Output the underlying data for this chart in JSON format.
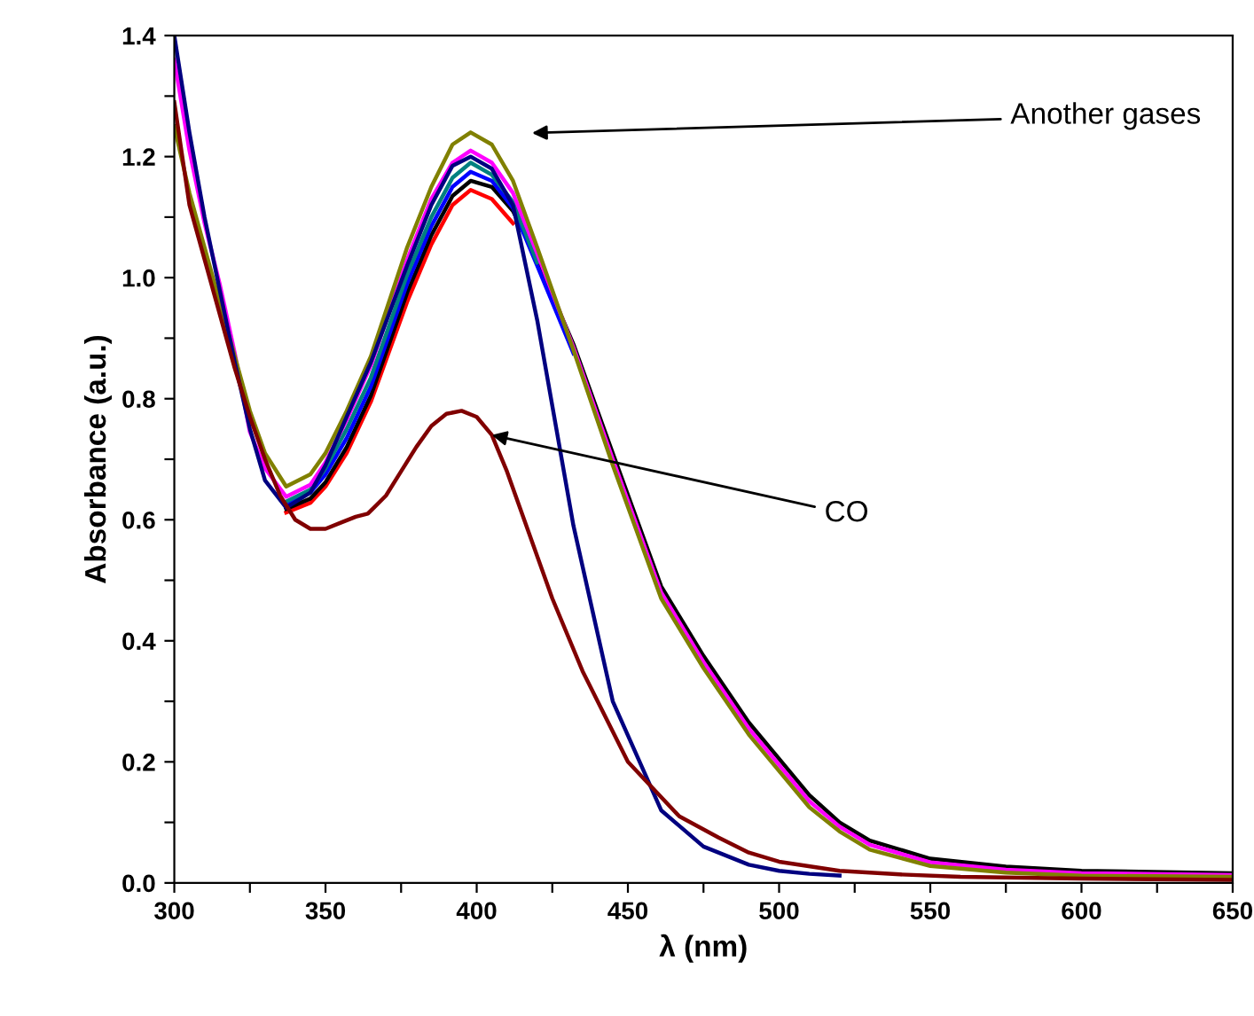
{
  "chart_data": {
    "type": "line",
    "xlabel": "λ (nm)",
    "ylabel": "Absorbance (a.u.)",
    "xlim": [
      300,
      650
    ],
    "ylim": [
      0,
      1.4
    ],
    "xticks": [
      300,
      {
        "value": 325,
        "label": null
      },
      350,
      {
        "value": 375,
        "label": null
      },
      400,
      {
        "value": 425,
        "label": null
      },
      450,
      {
        "value": 475,
        "label": null
      },
      500,
      {
        "value": 525,
        "label": null
      },
      550,
      {
        "value": 575,
        "label": null
      },
      600,
      {
        "value": 625,
        "label": null
      },
      650
    ],
    "yticks": [
      {
        "value": 0,
        "label": "0.0"
      },
      {
        "value": 0.1,
        "label": null
      },
      0.2,
      {
        "value": 0.3,
        "label": null
      },
      0.4,
      {
        "value": 0.5,
        "label": null
      },
      0.6,
      {
        "value": 0.7,
        "label": null
      },
      0.8,
      {
        "value": 0.9,
        "label": null
      },
      {
        "value": 1.0,
        "label": "1.0"
      },
      {
        "value": 1.1,
        "label": null
      },
      1.2,
      {
        "value": 1.3,
        "label": null
      },
      1.4
    ],
    "grid": false,
    "legend": false,
    "marker": "none",
    "line_style": "solid",
    "x": [
      300,
      305,
      310,
      315,
      320,
      325,
      330,
      337,
      345,
      350,
      357,
      365,
      377,
      385,
      392,
      398,
      405,
      412,
      420,
      432,
      445,
      461,
      475,
      490,
      500,
      510,
      520,
      530,
      550,
      575,
      600,
      650
    ],
    "series": [
      {
        "color": "#ff0000",
        "values": [
          null,
          null,
          null,
          null,
          null,
          null,
          null,
          0.612,
          0.628,
          0.655,
          0.71,
          0.795,
          0.96,
          1.055,
          1.12,
          1.145,
          1.13,
          1.09,
          null,
          null,
          null,
          null,
          null,
          null,
          null,
          null,
          null,
          null,
          null,
          null,
          null,
          null
        ]
      },
      {
        "color": "#000000",
        "values": [
          null,
          null,
          null,
          null,
          null,
          null,
          null,
          0.618,
          0.635,
          0.662,
          0.72,
          0.805,
          0.975,
          1.07,
          1.135,
          1.16,
          1.15,
          1.11,
          1.03,
          0.89,
          0.71,
          0.49,
          0.375,
          0.265,
          0.205,
          0.145,
          0.1,
          0.07,
          0.04,
          0.027,
          0.02,
          0.016
        ]
      },
      {
        "color": "#0000ff",
        "values": [
          null,
          null,
          null,
          null,
          null,
          null,
          null,
          0.625,
          0.645,
          0.675,
          0.735,
          0.82,
          0.99,
          1.085,
          1.15,
          1.175,
          1.16,
          1.115,
          1.02,
          0.875,
          null,
          null,
          null,
          null,
          null,
          null,
          null,
          null,
          null,
          null,
          null,
          null
        ]
      },
      {
        "color": "#008080",
        "values": [
          null,
          null,
          null,
          null,
          null,
          null,
          null,
          0.63,
          0.65,
          0.685,
          0.75,
          0.835,
          1.005,
          1.1,
          1.165,
          1.19,
          1.17,
          1.125,
          1.025,
          null,
          null,
          null,
          null,
          null,
          null,
          null,
          null,
          null,
          null,
          null,
          null,
          null
        ]
      },
      {
        "color": "#ff00ff",
        "values": [
          1.36,
          1.21,
          1.09,
          0.99,
          0.875,
          0.745,
          0.685,
          0.638,
          0.658,
          0.695,
          0.765,
          0.855,
          1.03,
          1.13,
          1.19,
          1.21,
          1.19,
          1.14,
          1.04,
          0.885,
          0.7,
          0.48,
          0.365,
          0.255,
          0.195,
          0.135,
          0.093,
          0.063,
          0.034,
          0.022,
          0.016,
          0.013
        ]
      },
      {
        "color": "#808000",
        "values": [
          1.25,
          1.14,
          1.05,
          0.96,
          0.87,
          0.78,
          0.71,
          0.655,
          0.675,
          0.71,
          0.78,
          0.87,
          1.05,
          1.15,
          1.22,
          1.24,
          1.22,
          1.16,
          1.05,
          0.88,
          0.69,
          0.47,
          0.355,
          0.245,
          0.185,
          0.125,
          0.085,
          0.055,
          0.028,
          0.017,
          0.012,
          0.01
        ]
      },
      {
        "color": "#000080",
        "values": [
          1.4,
          1.24,
          1.1,
          0.98,
          0.86,
          0.75,
          0.665,
          0.62,
          0.645,
          0.69,
          0.77,
          0.86,
          1.02,
          1.12,
          1.185,
          1.2,
          1.18,
          1.12,
          0.93,
          0.59,
          0.3,
          0.12,
          0.06,
          0.03,
          0.02,
          0.015,
          0.012,
          null,
          null,
          null,
          null,
          null
        ]
      },
      {
        "color": "#800000",
        "x": [
          300,
          305,
          310,
          315,
          320,
          325,
          330,
          335,
          340,
          345,
          350,
          355,
          360,
          364,
          366,
          370,
          375,
          380,
          385,
          390,
          395,
          400,
          405,
          410,
          415,
          425,
          435,
          450,
          467,
          480,
          490,
          500,
          520,
          540,
          560,
          600,
          650
        ],
        "values": [
          1.29,
          1.12,
          1.03,
          0.94,
          0.85,
          0.77,
          0.7,
          0.64,
          0.6,
          0.585,
          0.585,
          0.595,
          0.605,
          0.61,
          0.62,
          0.64,
          0.68,
          0.72,
          0.755,
          0.775,
          0.78,
          0.77,
          0.74,
          0.68,
          0.61,
          0.47,
          0.35,
          0.2,
          0.11,
          0.075,
          0.05,
          0.035,
          0.02,
          0.014,
          0.01,
          0.007,
          0.005
        ]
      }
    ],
    "annotations": [
      "Another gases",
      {
        "text": "CO",
        "x": 405,
        "y": 0.74
      }
    ]
  }
}
